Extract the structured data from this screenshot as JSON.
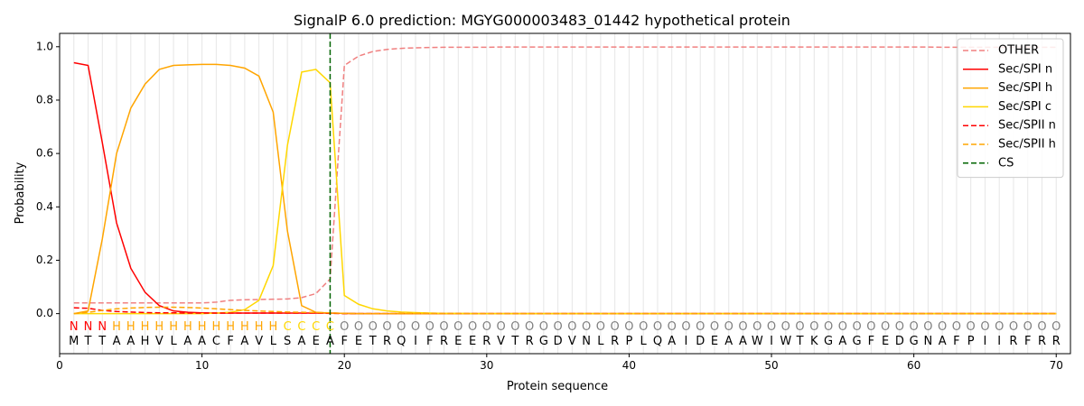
{
  "chart_data": {
    "type": "line",
    "title": "SignalP 6.0 prediction: MGYG000003483_01442 hypothetical protein",
    "xlabel": "Protein sequence",
    "ylabel": "Probability",
    "xlim": [
      0,
      71
    ],
    "ylim": [
      -0.15,
      1.05
    ],
    "xticks": [
      0,
      10,
      20,
      30,
      40,
      50,
      60,
      70
    ],
    "yticks": [
      0.0,
      0.2,
      0.4,
      0.6,
      0.8,
      1.0
    ],
    "ytick_labels": [
      "0.0",
      "0.2",
      "0.4",
      "0.6",
      "0.8",
      "1.0"
    ],
    "grid": "vertical lines at each residue",
    "legend_position": "top-right",
    "sequence": [
      "M",
      "T",
      "T",
      "A",
      "A",
      "H",
      "V",
      "L",
      "A",
      "A",
      "C",
      "F",
      "A",
      "V",
      "L",
      "S",
      "A",
      "E",
      "A",
      "F",
      "E",
      "T",
      "R",
      "Q",
      "I",
      "F",
      "R",
      "E",
      "E",
      "R",
      "V",
      "T",
      "R",
      "G",
      "D",
      "V",
      "N",
      "L",
      "R",
      "P",
      "L",
      "Q",
      "A",
      "I",
      "D",
      "E",
      "A",
      "A",
      "W",
      "I",
      "W",
      "T",
      "K",
      "G",
      "A",
      "G",
      "F",
      "E",
      "D",
      "G",
      "N",
      "A",
      "F",
      "P",
      "I",
      "I",
      "R",
      "F",
      "R",
      "R"
    ],
    "regions": [
      "N",
      "N",
      "N",
      "H",
      "H",
      "H",
      "H",
      "H",
      "H",
      "H",
      "H",
      "H",
      "H",
      "H",
      "H",
      "C",
      "C",
      "C",
      "C",
      "O",
      "O",
      "O",
      "O",
      "O",
      "O",
      "O",
      "O",
      "O",
      "O",
      "O",
      "O",
      "O",
      "O",
      "O",
      "O",
      "O",
      "O",
      "O",
      "O",
      "O",
      "O",
      "O",
      "O",
      "O",
      "O",
      "O",
      "O",
      "O",
      "O",
      "O",
      "O",
      "O",
      "O",
      "O",
      "O",
      "O",
      "O",
      "O",
      "O",
      "O",
      "O",
      "O",
      "O",
      "O",
      "O",
      "O",
      "O",
      "O",
      "O",
      "O"
    ],
    "region_colors": {
      "N": "#ff0000",
      "H": "#ffa500",
      "C": "#ffd700",
      "O": "#808080"
    },
    "cleavage_site": 19,
    "series": [
      {
        "name": "OTHER",
        "color": "#f08080",
        "dash": "dashed",
        "values": [
          0.04,
          0.04,
          0.04,
          0.04,
          0.04,
          0.04,
          0.04,
          0.04,
          0.04,
          0.04,
          0.043,
          0.05,
          0.052,
          0.053,
          0.054,
          0.055,
          0.06,
          0.075,
          0.13,
          0.93,
          0.965,
          0.982,
          0.99,
          0.994,
          0.996,
          0.997,
          0.998,
          0.998,
          0.998,
          0.998,
          0.999,
          0.999,
          0.999,
          0.999,
          0.999,
          0.999,
          0.999,
          0.999,
          0.999,
          0.999,
          0.999,
          0.999,
          0.999,
          0.999,
          0.999,
          0.999,
          0.999,
          0.999,
          0.999,
          0.999,
          0.999,
          0.999,
          0.999,
          0.999,
          0.999,
          0.999,
          0.999,
          0.999,
          0.999,
          0.999,
          0.999,
          0.998,
          0.998,
          0.998,
          0.998,
          0.998,
          0.998,
          0.998,
          0.998,
          0.998
        ]
      },
      {
        "name": "Sec/SPI n",
        "color": "#ff0000",
        "dash": "solid",
        "values": [
          0.94,
          0.93,
          0.64,
          0.34,
          0.17,
          0.08,
          0.03,
          0.01,
          0.005,
          0.003,
          0.002,
          0.002,
          0.002,
          0.002,
          0.002,
          0.002,
          0.002,
          0.002,
          0.002,
          0.001,
          0,
          0,
          0,
          0,
          0,
          0,
          0,
          0,
          0,
          0,
          0,
          0,
          0,
          0,
          0,
          0,
          0,
          0,
          0,
          0,
          0,
          0,
          0,
          0,
          0,
          0,
          0,
          0,
          0,
          0,
          0,
          0,
          0,
          0,
          0,
          0,
          0,
          0,
          0,
          0,
          0,
          0,
          0,
          0,
          0,
          0,
          0,
          0,
          0,
          0
        ]
      },
      {
        "name": "Sec/SPI h",
        "color": "#ffa500",
        "dash": "solid",
        "values": [
          0.0,
          0.01,
          0.28,
          0.6,
          0.77,
          0.86,
          0.915,
          0.93,
          0.932,
          0.934,
          0.934,
          0.93,
          0.92,
          0.89,
          0.755,
          0.31,
          0.03,
          0.005,
          0.002,
          0.001,
          0,
          0,
          0,
          0,
          0,
          0,
          0,
          0,
          0,
          0,
          0,
          0,
          0,
          0,
          0,
          0,
          0,
          0,
          0,
          0,
          0,
          0,
          0,
          0,
          0,
          0,
          0,
          0,
          0,
          0,
          0,
          0,
          0,
          0,
          0,
          0,
          0,
          0,
          0,
          0,
          0,
          0,
          0,
          0,
          0,
          0,
          0,
          0,
          0,
          0
        ]
      },
      {
        "name": "Sec/SPI c",
        "color": "#ffd700",
        "dash": "solid",
        "values": [
          0,
          0,
          0,
          0,
          0,
          0,
          0,
          0,
          0,
          0,
          0.002,
          0.005,
          0.015,
          0.05,
          0.18,
          0.63,
          0.905,
          0.915,
          0.865,
          0.068,
          0.035,
          0.018,
          0.01,
          0.006,
          0.004,
          0.002,
          0.001,
          0.001,
          0,
          0,
          0,
          0,
          0,
          0,
          0,
          0,
          0,
          0,
          0,
          0,
          0,
          0,
          0,
          0,
          0,
          0,
          0,
          0,
          0,
          0,
          0,
          0,
          0,
          0,
          0,
          0,
          0,
          0,
          0,
          0,
          0,
          0,
          0,
          0,
          0,
          0,
          0,
          0,
          0,
          0
        ]
      },
      {
        "name": "Sec/SPII n",
        "color": "#ff0000",
        "dash": "dashed",
        "values": [
          0.022,
          0.02,
          0.012,
          0.008,
          0.006,
          0.004,
          0.003,
          0.003,
          0.002,
          0.002,
          0.002,
          0.002,
          0.002,
          0.002,
          0.002,
          0.002,
          0.002,
          0.002,
          0.001,
          0,
          0,
          0,
          0,
          0,
          0,
          0,
          0,
          0,
          0,
          0,
          0,
          0,
          0,
          0,
          0,
          0,
          0,
          0,
          0,
          0,
          0,
          0,
          0,
          0,
          0,
          0,
          0,
          0,
          0,
          0,
          0,
          0,
          0,
          0,
          0,
          0,
          0,
          0,
          0,
          0,
          0,
          0,
          0,
          0,
          0,
          0,
          0,
          0,
          0,
          0
        ]
      },
      {
        "name": "Sec/SPII h",
        "color": "#ffa500",
        "dash": "dashed",
        "values": [
          0.0,
          0.005,
          0.012,
          0.018,
          0.021,
          0.023,
          0.024,
          0.024,
          0.023,
          0.021,
          0.018,
          0.015,
          0.012,
          0.01,
          0.008,
          0.006,
          0.005,
          0.004,
          0.003,
          0.001,
          0,
          0,
          0,
          0,
          0,
          0,
          0,
          0,
          0,
          0,
          0,
          0,
          0,
          0,
          0,
          0,
          0,
          0,
          0,
          0,
          0,
          0,
          0,
          0,
          0,
          0,
          0,
          0,
          0,
          0,
          0,
          0,
          0,
          0,
          0,
          0,
          0,
          0,
          0,
          0,
          0,
          0,
          0,
          0,
          0,
          0,
          0,
          0,
          0,
          0
        ]
      }
    ],
    "cs_legend": {
      "name": "CS",
      "color": "#006400",
      "dash": "dashed"
    }
  }
}
